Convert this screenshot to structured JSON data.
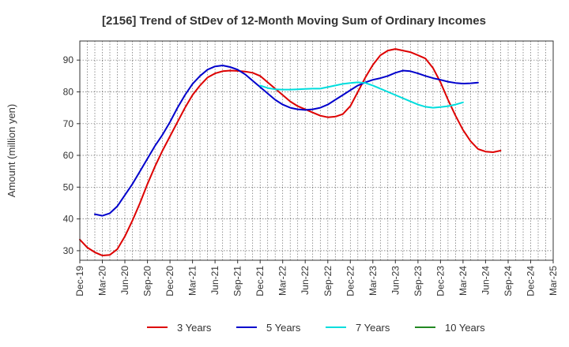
{
  "chart_data": {
    "type": "line",
    "title": "[2156]  Trend of StDev of 12-Month Moving Sum of Ordinary Incomes",
    "xlabel": "",
    "ylabel": "Amount (million yen)",
    "ylim": [
      27,
      96
    ],
    "yticks": [
      30,
      40,
      50,
      60,
      70,
      80,
      90
    ],
    "grid": true,
    "legend_position": "bottom",
    "x_ticks": [
      "Dec-19",
      "Mar-20",
      "Jun-20",
      "Sep-20",
      "Dec-20",
      "Mar-21",
      "Jun-21",
      "Sep-21",
      "Dec-21",
      "Mar-22",
      "Jun-22",
      "Sep-22",
      "Dec-22",
      "Mar-23",
      "Jun-23",
      "Sep-23",
      "Dec-23",
      "Mar-24",
      "Jun-24",
      "Sep-24",
      "Dec-24",
      "Mar-25"
    ],
    "series": [
      {
        "name": "3 Years",
        "color": "#dd0000",
        "start_index": 0,
        "values": [
          33.5,
          31.0,
          29.5,
          28.5,
          28.7,
          30.5,
          34.5,
          39.5,
          45.0,
          51.0,
          56.5,
          61.5,
          66.0,
          70.5,
          75.0,
          79.0,
          82.0,
          84.5,
          85.8,
          86.5,
          86.7,
          86.6,
          86.4,
          86.0,
          85.0,
          83.0,
          81.0,
          79.0,
          77.0,
          75.5,
          74.5,
          73.5,
          72.5,
          72.0,
          72.2,
          73.0,
          75.5,
          80.0,
          84.5,
          88.5,
          91.5,
          93.0,
          93.5,
          93.0,
          92.5,
          91.5,
          90.5,
          87.5,
          83.0,
          77.5,
          72.5,
          68.0,
          64.5,
          62.0,
          61.2,
          61.0,
          61.5
        ]
      },
      {
        "name": "5 Years",
        "color": "#0000cc",
        "start_index": 2,
        "values": [
          41.5,
          41.0,
          41.8,
          44.0,
          47.5,
          51.0,
          55.0,
          59.0,
          63.0,
          66.5,
          70.5,
          75.0,
          79.0,
          82.5,
          85.0,
          87.0,
          88.0,
          88.3,
          87.8,
          87.0,
          85.5,
          83.5,
          81.5,
          79.5,
          77.5,
          76.0,
          75.0,
          74.5,
          74.3,
          74.5,
          75.0,
          76.0,
          77.5,
          79.0,
          80.5,
          82.0,
          83.0,
          83.8,
          84.3,
          85.0,
          86.0,
          86.7,
          86.5,
          85.8,
          85.0,
          84.3,
          83.8,
          83.2,
          82.8,
          82.6,
          82.7,
          82.9
        ]
      },
      {
        "name": "7 Years",
        "color": "#00dddd",
        "start_index": 24,
        "values": [
          82.0,
          81.2,
          80.8,
          80.7,
          80.7,
          80.8,
          80.9,
          81.0,
          81.0,
          81.5,
          82.0,
          82.5,
          82.8,
          83.0,
          82.8,
          82.0,
          81.0,
          80.0,
          79.0,
          78.0,
          77.0,
          76.0,
          75.3,
          75.0,
          75.2,
          75.5,
          76.0,
          76.7
        ]
      },
      {
        "name": "10 Years",
        "color": "#228822",
        "start_index": 0,
        "values": []
      }
    ]
  }
}
